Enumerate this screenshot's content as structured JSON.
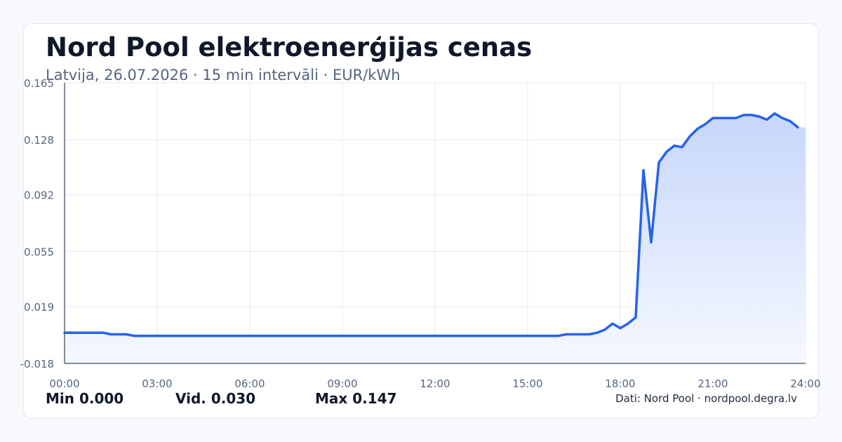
{
  "header": {
    "title": "Nord Pool elektroenerģijas cenas",
    "subtitle": "Latvija, 26.07.2026 · 15 min intervāli · EUR/kWh"
  },
  "stats": {
    "min": "Min 0.000",
    "avg": "Vid. 0.030",
    "max": "Max 0.147"
  },
  "footer": {
    "source": "Dati: Nord Pool · nordpool.degra.lv"
  },
  "colors": {
    "line": "#2563eb",
    "fill_top": "#c7d7fa",
    "fill_bottom": "#f5f8ff",
    "grid": "#e5e9f0",
    "axis": "#5b6778",
    "tick_label": "#55657e"
  },
  "chart_data": {
    "type": "area",
    "title": "Nord Pool elektroenerģijas cenas",
    "xlabel": "",
    "ylabel": "",
    "grid": true,
    "xlim": [
      0,
      24
    ],
    "ylim": [
      -0.018,
      0.165
    ],
    "yticks": [
      "0.165",
      "0.128",
      "0.092",
      "0.055",
      "0.019",
      "-0.018"
    ],
    "ytick_values": [
      0.165,
      0.128,
      0.092,
      0.055,
      0.019,
      -0.018
    ],
    "xticks": [
      "00:00",
      "03:00",
      "06:00",
      "09:00",
      "12:00",
      "15:00",
      "18:00",
      "21:00",
      "24:00"
    ],
    "xtick_values": [
      0,
      3,
      6,
      9,
      12,
      15,
      18,
      21,
      24
    ],
    "series": [
      {
        "x": [
          0,
          1.25,
          1.5,
          2,
          2.25,
          16,
          16.25,
          17,
          17.25,
          17.5,
          17.75,
          18,
          18.25,
          18.5,
          18.75,
          19,
          19.25,
          19.5,
          19.75,
          20,
          20.25,
          20.5,
          20.75,
          21,
          21.25,
          21.5,
          21.75,
          22,
          22.25,
          22.5,
          22.75,
          23,
          23.25,
          23.5,
          23.75
        ],
        "values": [
          0.002,
          0.002,
          0.001,
          0.001,
          0.0,
          0.0,
          0.001,
          0.001,
          0.002,
          0.004,
          0.008,
          0.005,
          0.008,
          0.012,
          0.108,
          0.061,
          0.113,
          0.12,
          0.124,
          0.123,
          0.13,
          0.135,
          0.138,
          0.142,
          0.142,
          0.142,
          0.142,
          0.144,
          0.144,
          0.143,
          0.141,
          0.145,
          0.142,
          0.14,
          0.136
        ]
      }
    ]
  }
}
